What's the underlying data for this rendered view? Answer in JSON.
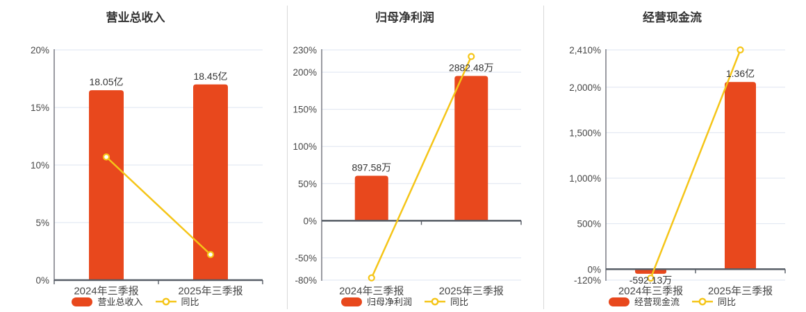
{
  "colors": {
    "background": "#FFFFFF",
    "bar": "#E8481D",
    "line": "#F5C518",
    "grid": "#DEE4F0",
    "axis_strong": "#575D66",
    "axis_spine": "#6E7079",
    "title_text": "#333333",
    "axis_label_text": "#474747",
    "value_label_text": "#333333",
    "legend_text": "#333333",
    "divider": "#D9D9D9",
    "marker_fill": "#FFFFFF"
  },
  "chart_data": [
    {
      "type": "bar+line",
      "title": "营业总收入",
      "categories": [
        "2024年三季报",
        "2025年三季报"
      ],
      "bar_series": {
        "name": "营业总收入",
        "labels": [
          "18.05亿",
          "18.45亿"
        ],
        "values": [
          18.05,
          18.45
        ],
        "unit": "亿",
        "display_axis_values": [
          16.5,
          17.0
        ]
      },
      "line_series": {
        "name": "同比",
        "values_pct": [
          10.7,
          2.22
        ]
      },
      "y_axis": {
        "ylim": [
          0,
          20
        ],
        "ticks": [
          {
            "label": "0%",
            "value": 0
          },
          {
            "label": "5%",
            "value": 5
          },
          {
            "label": "10%",
            "value": 10
          },
          {
            "label": "15%",
            "value": 15
          },
          {
            "label": "20%",
            "value": 20
          }
        ],
        "zero_line_style": "bottom-axis"
      },
      "grid": true,
      "legend_position": "bottom"
    },
    {
      "type": "bar+line",
      "title": "归母净利润",
      "categories": [
        "2024年三季报",
        "2025年三季报"
      ],
      "bar_series": {
        "name": "归母净利润",
        "labels": [
          "897.58万",
          "2882.48万"
        ],
        "values": [
          897.58,
          2882.48
        ],
        "unit": "万",
        "display_axis_values": [
          60.5,
          195
        ]
      },
      "line_series": {
        "name": "同比",
        "values_pct": [
          -77,
          221.1
        ]
      },
      "y_axis": {
        "ylim": [
          -80,
          230
        ],
        "ticks": [
          {
            "label": "-80%",
            "value": -80
          },
          {
            "label": "-50%",
            "value": -50
          },
          {
            "label": "0%",
            "value": 0
          },
          {
            "label": "50%",
            "value": 50
          },
          {
            "label": "100%",
            "value": 100
          },
          {
            "label": "150%",
            "value": 150
          },
          {
            "label": "200%",
            "value": 200
          },
          {
            "label": "230%",
            "value": 230
          }
        ],
        "zero_line_style": "inner-strong"
      },
      "grid": true,
      "legend_position": "bottom"
    },
    {
      "type": "bar+line",
      "title": "经营现金流",
      "categories": [
        "2024年三季报",
        "2025年三季报"
      ],
      "bar_series": {
        "name": "经营现金流",
        "labels": [
          "-592.13万",
          "1.36亿"
        ],
        "values": [
          -592.13,
          13600
        ],
        "unit": "万",
        "display_axis_values": [
          -50,
          2058
        ]
      },
      "line_series": {
        "name": "同比",
        "values_pct": [
          -98,
          2410
        ]
      },
      "y_axis": {
        "ylim": [
          -120,
          2410
        ],
        "ticks": [
          {
            "label": "-120%",
            "value": -120
          },
          {
            "label": "0%",
            "value": 0
          },
          {
            "label": "500%",
            "value": 500
          },
          {
            "label": "1,000%",
            "value": 1000
          },
          {
            "label": "1,500%",
            "value": 1500
          },
          {
            "label": "2,000%",
            "value": 2000
          },
          {
            "label": "2,410%",
            "value": 2410
          }
        ],
        "zero_line_style": "inner-strong"
      },
      "grid": true,
      "legend_position": "bottom"
    }
  ]
}
